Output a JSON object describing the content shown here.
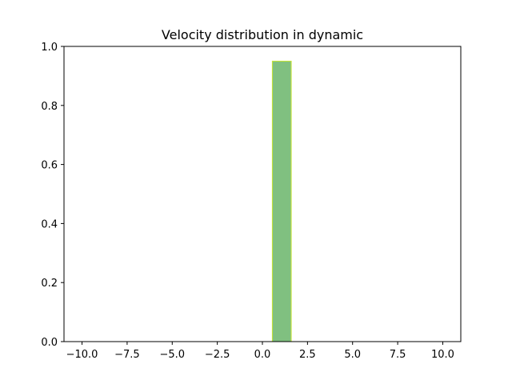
{
  "chart_data": {
    "type": "bar",
    "title": "Velocity distribution in dynamic",
    "xlabel": "",
    "ylabel": "",
    "xlim": [
      -11,
      11
    ],
    "ylim": [
      0,
      1.0
    ],
    "x_ticks": [
      -10.0,
      -7.5,
      -5.0,
      -2.5,
      0.0,
      2.5,
      5.0,
      7.5,
      10.0
    ],
    "x_tick_labels": [
      "−10.0",
      "−7.5",
      "−5.0",
      "−2.5",
      "0.0",
      "2.5",
      "5.0",
      "7.5",
      "10.0"
    ],
    "y_ticks": [
      0.0,
      0.2,
      0.4,
      0.6,
      0.8,
      1.0
    ],
    "y_tick_labels": [
      "0.0",
      "0.2",
      "0.4",
      "0.6",
      "0.8",
      "1.0"
    ],
    "grid": false,
    "bins": [
      {
        "x_start": 0.55,
        "x_end": 1.6,
        "value": 0.95
      }
    ],
    "bar_fill": "#80c080",
    "bar_edge": "#c8e632"
  }
}
